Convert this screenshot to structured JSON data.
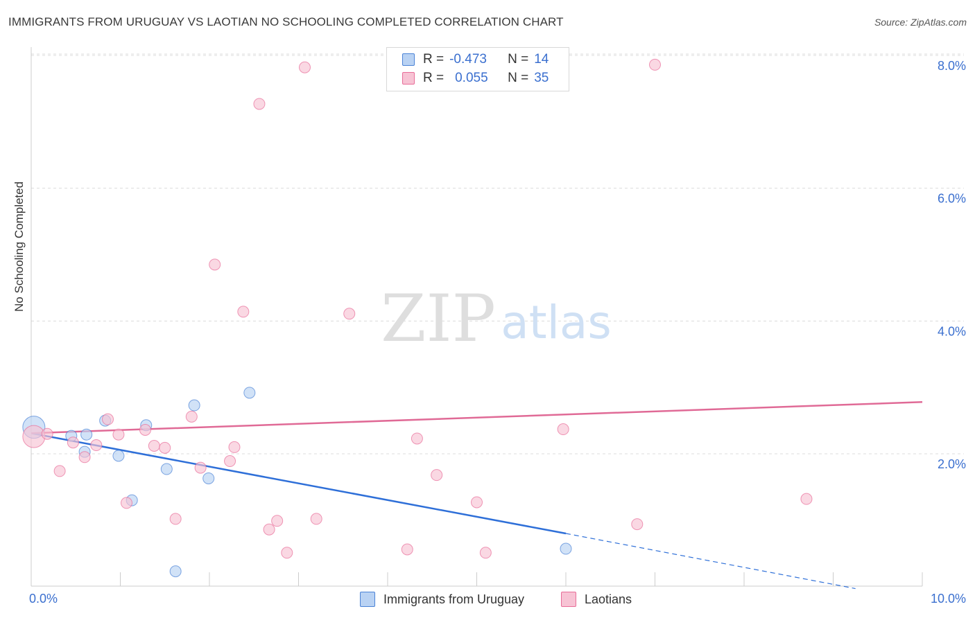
{
  "title": "IMMIGRANTS FROM URUGUAY VS LAOTIAN NO SCHOOLING COMPLETED CORRELATION CHART",
  "source": "Source: ZipAtlas.com",
  "watermark": {
    "zip": "ZIP",
    "atlas": "atlas"
  },
  "colors": {
    "blue": "#4a82d6",
    "blue_fill": "#b9d2f3",
    "pink": "#e86c98",
    "pink_fill": "#f7c3d4",
    "tick_text": "#3a6fcf"
  },
  "legend": {
    "rows": [
      {
        "r_label": "R =",
        "r_value": "-0.473",
        "n_label": "N =",
        "n_value": "14"
      },
      {
        "r_label": "R =",
        "r_value": "0.055",
        "n_label": "N =",
        "n_value": "35"
      }
    ]
  },
  "bottom_legend": {
    "series1": "Immigrants from Uruguay",
    "series2": "Laotians"
  },
  "chart_data": {
    "type": "scatter",
    "title": "IMMIGRANTS FROM URUGUAY VS LAOTIAN NO SCHOOLING COMPLETED CORRELATION CHART",
    "xlabel": "",
    "ylabel": "No Schooling Completed",
    "xlim": [
      0,
      10
    ],
    "ylim": [
      0,
      8.25
    ],
    "x_tick_labels": [
      {
        "x": 0,
        "label": "0.0%"
      },
      {
        "x": 10,
        "label": "10.0%"
      }
    ],
    "y_ticks": [
      {
        "y": 2,
        "label": "2.0%"
      },
      {
        "y": 4,
        "label": "4.0%"
      },
      {
        "y": 6,
        "label": "6.0%"
      },
      {
        "y": 8,
        "label": "8.0%"
      }
    ],
    "series": [
      {
        "name": "Immigrants from Uruguay",
        "color": "blue",
        "points": [
          {
            "x": 0.03,
            "y": 2.4,
            "big": true
          },
          {
            "x": 0.45,
            "y": 2.27
          },
          {
            "x": 0.62,
            "y": 2.29
          },
          {
            "x": 0.6,
            "y": 2.03
          },
          {
            "x": 0.83,
            "y": 2.5
          },
          {
            "x": 0.98,
            "y": 1.97
          },
          {
            "x": 1.13,
            "y": 1.3
          },
          {
            "x": 1.29,
            "y": 2.43
          },
          {
            "x": 1.52,
            "y": 1.77
          },
          {
            "x": 1.83,
            "y": 2.73
          },
          {
            "x": 1.99,
            "y": 1.63
          },
          {
            "x": 2.45,
            "y": 2.92
          },
          {
            "x": 1.62,
            "y": 0.23
          },
          {
            "x": 6.0,
            "y": 0.57
          }
        ],
        "trend": {
          "x0": 0,
          "y0": 2.31,
          "x1": 6.0,
          "y1": 0.8,
          "dash_to_x": 9.25,
          "dash_to_y": -0.03
        }
      },
      {
        "name": "Laotians",
        "color": "pink",
        "points": [
          {
            "x": 0.03,
            "y": 2.26,
            "big": true
          },
          {
            "x": 0.18,
            "y": 2.3
          },
          {
            "x": 0.32,
            "y": 1.74
          },
          {
            "x": 0.47,
            "y": 2.17
          },
          {
            "x": 0.6,
            "y": 1.95
          },
          {
            "x": 0.73,
            "y": 2.13
          },
          {
            "x": 0.86,
            "y": 2.52
          },
          {
            "x": 0.98,
            "y": 2.29
          },
          {
            "x": 1.07,
            "y": 1.26
          },
          {
            "x": 1.28,
            "y": 2.36
          },
          {
            "x": 1.38,
            "y": 2.12
          },
          {
            "x": 1.5,
            "y": 2.09
          },
          {
            "x": 1.62,
            "y": 1.02
          },
          {
            "x": 1.8,
            "y": 2.56
          },
          {
            "x": 1.9,
            "y": 1.79
          },
          {
            "x": 2.06,
            "y": 4.85
          },
          {
            "x": 2.23,
            "y": 1.89
          },
          {
            "x": 2.28,
            "y": 2.1
          },
          {
            "x": 2.38,
            "y": 4.14
          },
          {
            "x": 2.56,
            "y": 7.27
          },
          {
            "x": 2.67,
            "y": 0.86
          },
          {
            "x": 2.76,
            "y": 0.99
          },
          {
            "x": 2.87,
            "y": 0.51
          },
          {
            "x": 3.07,
            "y": 7.82
          },
          {
            "x": 3.2,
            "y": 1.02
          },
          {
            "x": 3.57,
            "y": 4.11
          },
          {
            "x": 4.22,
            "y": 0.56
          },
          {
            "x": 4.33,
            "y": 2.23
          },
          {
            "x": 4.55,
            "y": 1.68
          },
          {
            "x": 5.0,
            "y": 1.27
          },
          {
            "x": 5.1,
            "y": 0.51
          },
          {
            "x": 5.97,
            "y": 2.37
          },
          {
            "x": 6.8,
            "y": 0.94
          },
          {
            "x": 7.0,
            "y": 7.86
          },
          {
            "x": 8.7,
            "y": 1.32
          }
        ],
        "trend": {
          "x0": 0,
          "y0": 2.31,
          "x1": 10,
          "y1": 2.78
        }
      }
    ]
  }
}
